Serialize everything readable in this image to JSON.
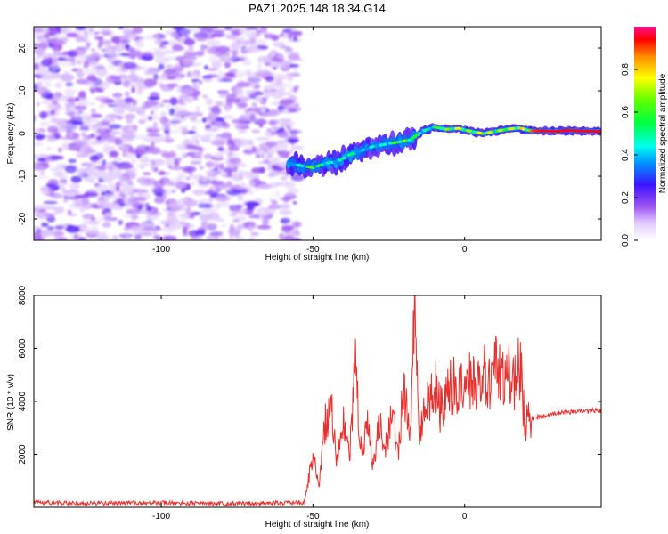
{
  "title": "PAZ1.2025.148.18.34.G14",
  "chart_data": [
    {
      "type": "heatmap",
      "panel": "spectrogram",
      "xlabel": "Height of straight line (km)",
      "ylabel": "Frequency (Hz)",
      "xlim": [
        -142,
        45
      ],
      "ylim": [
        -25,
        25
      ],
      "xticks": [
        -100,
        -50,
        0
      ],
      "yticks": [
        -20,
        -10,
        0,
        10,
        20
      ],
      "colorbar": {
        "label": "Normalized spectral amplitude",
        "range": [
          0,
          1
        ],
        "ticks": [
          "0.0",
          "0.2",
          "0.4",
          "0.6",
          "0.8"
        ]
      },
      "signal_track": {
        "heights": [
          -58,
          -54,
          -50,
          -46,
          -42,
          -38,
          -34,
          -30,
          -26,
          -22,
          -18,
          -14,
          -10,
          -6,
          -2,
          2,
          6,
          10,
          14,
          18,
          22,
          26,
          30,
          34,
          38,
          42,
          45
        ],
        "frequencies": [
          -7,
          -7.5,
          -8,
          -7,
          -6.5,
          -5,
          -4,
          -3,
          -2.5,
          -2,
          -1.5,
          0.5,
          1.5,
          1,
          1.2,
          0.5,
          0,
          0.5,
          1,
          1.3,
          0.6,
          0.6,
          0.5,
          0.7,
          0.6,
          0.5,
          0.5
        ],
        "amplitudes": [
          0.3,
          0.5,
          0.7,
          0.5,
          0.5,
          0.6,
          0.4,
          0.5,
          0.5,
          0.7,
          0.7,
          0.5,
          0.6,
          0.7,
          0.8,
          0.7,
          0.8,
          0.7,
          0.8,
          0.8,
          0.9,
          0.95,
          0.95,
          0.95,
          0.95,
          0.95,
          0.95
        ]
      }
    },
    {
      "type": "line",
      "panel": "snr",
      "xlabel": "Height of straight line (km)",
      "ylabel": "SNR (10 * v/v)",
      "xlim": [
        -142,
        45
      ],
      "ylim": [
        0,
        8000
      ],
      "xticks": [
        -100,
        -50,
        0
      ],
      "yticks": [
        2000,
        4000,
        6000,
        8000
      ],
      "series": [
        {
          "name": "SNR",
          "color": "#e8312e",
          "x": [
            -142,
            -120,
            -100,
            -80,
            -60,
            -53,
            -50,
            -48,
            -46,
            -44,
            -42,
            -40,
            -38,
            -36,
            -34,
            -32,
            -30,
            -28,
            -26,
            -24,
            -22,
            -20,
            -18,
            -16.5,
            -15,
            -13,
            -10,
            -8,
            -6,
            -4,
            -2,
            0,
            2,
            4,
            6,
            8,
            10,
            12,
            14,
            16,
            18,
            20,
            22,
            24,
            26,
            28,
            30,
            32,
            34,
            36,
            38,
            40,
            42,
            44,
            45
          ],
          "y": [
            180,
            150,
            170,
            140,
            160,
            170,
            1900,
            900,
            3200,
            3900,
            1500,
            3400,
            1800,
            5300,
            2000,
            3000,
            1600,
            3300,
            2200,
            3800,
            2000,
            4700,
            2500,
            8000,
            2800,
            3600,
            4800,
            3700,
            4200,
            4600,
            4400,
            4300,
            4800,
            4700,
            5200,
            4500,
            5300,
            4800,
            5400,
            4600,
            5600,
            3200,
            3350,
            3400,
            3450,
            3500,
            3550,
            3600,
            3600,
            3620,
            3650,
            3600,
            3670,
            3650,
            3640
          ]
        }
      ]
    }
  ]
}
